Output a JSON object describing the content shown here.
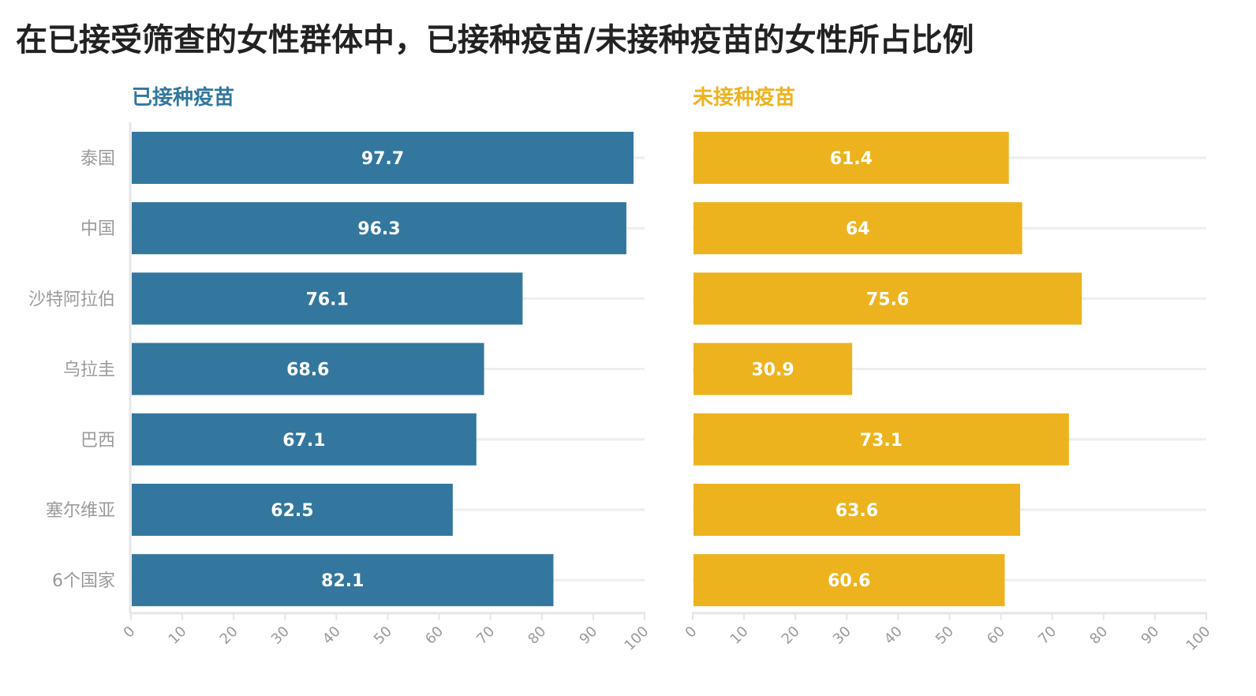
{
  "title": "在已接受筛查的女性群体中，已接种疫苗/未接种疫苗的女性所占比例",
  "chart_data": {
    "type": "bar",
    "orientation": "horizontal",
    "categories": [
      "泰国",
      "中国",
      "沙特阿拉伯",
      "乌拉圭",
      "巴西",
      "塞尔维亚",
      "6个国家"
    ],
    "xlim": [
      0,
      100
    ],
    "xticks": [
      "0",
      "10",
      "20",
      "30",
      "40",
      "50",
      "60",
      "70",
      "80",
      "90",
      "100"
    ],
    "grid": true,
    "panels": [
      {
        "title": "已接种疫苗",
        "color": "#33779f",
        "values": [
          97.7,
          96.3,
          76.1,
          68.6,
          67.1,
          62.5,
          82.1
        ],
        "labels": [
          "97.7",
          "96.3",
          "76.1",
          "68.6",
          "67.1",
          "62.5",
          "82.1"
        ]
      },
      {
        "title": "未接种疫苗",
        "color": "#edb31f",
        "values": [
          61.4,
          64,
          75.6,
          30.9,
          73.1,
          63.6,
          60.6
        ],
        "labels": [
          "61.4",
          "64",
          "75.6",
          "30.9",
          "73.1",
          "63.6",
          "60.6"
        ]
      }
    ]
  },
  "colors": {
    "title_text": "#222222",
    "grid": "#eeeeee",
    "axis": "#e6e6e6",
    "muted_text": "#9a9a9a"
  }
}
